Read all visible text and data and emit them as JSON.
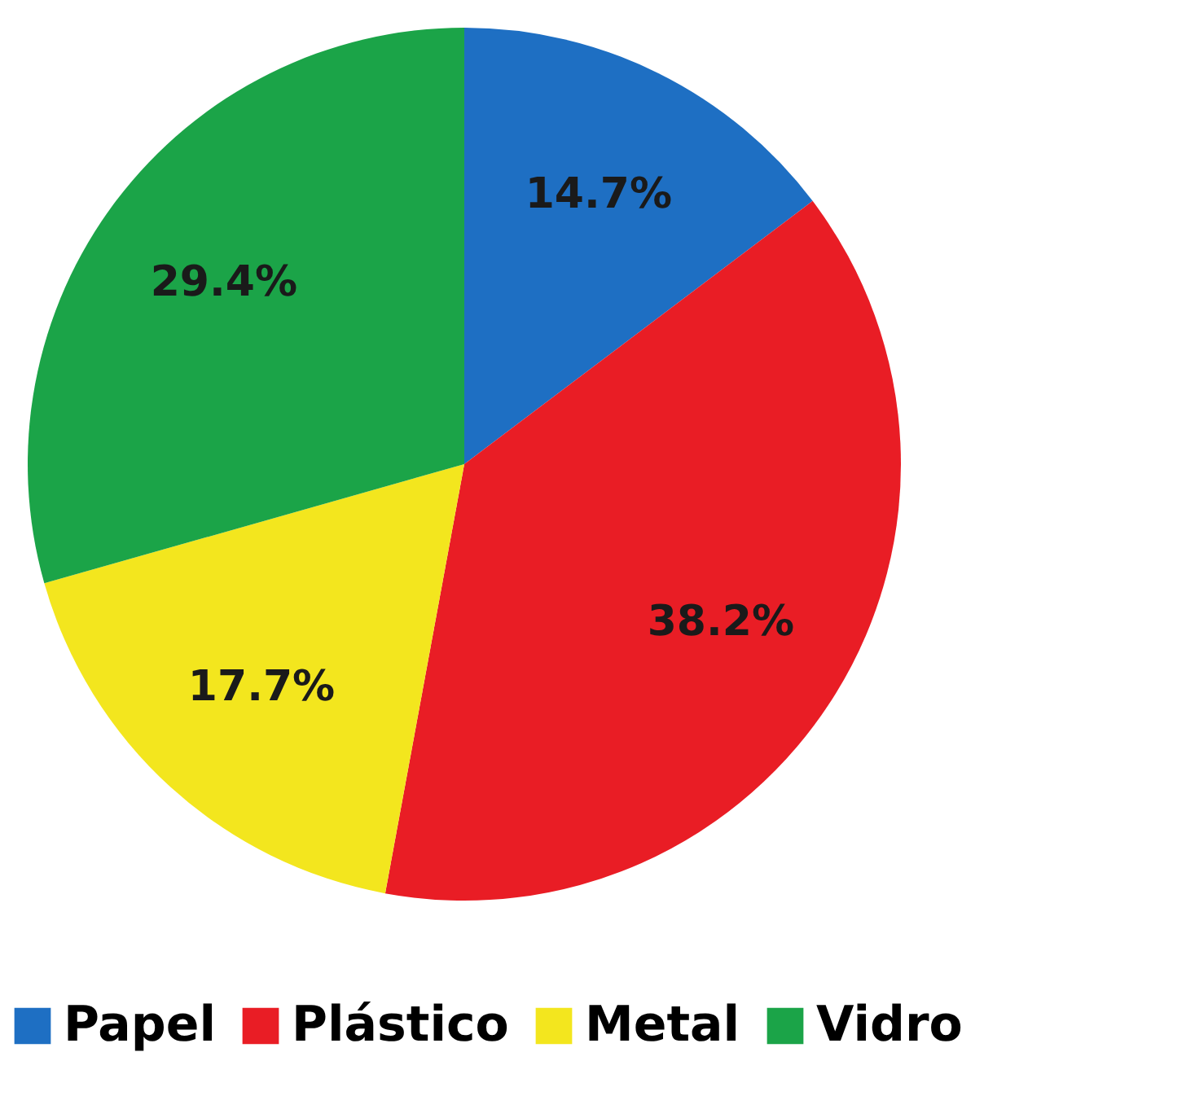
{
  "chart_data": {
    "type": "pie",
    "categories": [
      "Papel",
      "Plástico",
      "Metal",
      "Vidro"
    ],
    "values": [
      14.7,
      38.2,
      17.7,
      29.4
    ],
    "colors": [
      "#1e6fc3",
      "#e91d25",
      "#f3e61e",
      "#1ba448"
    ],
    "value_labels": [
      "14.7%",
      "38.2%",
      "17.7%",
      "29.4%"
    ],
    "legend": "bottom"
  }
}
